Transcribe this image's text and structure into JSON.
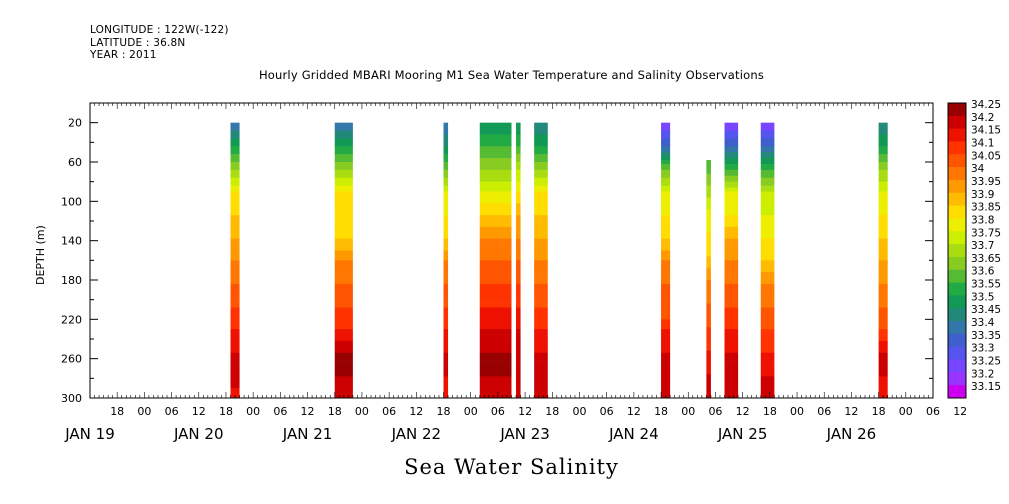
{
  "header": {
    "longitude": "LONGITUDE : 122W(-122)",
    "latitude": "LATITUDE : 36.8N",
    "year": "YEAR : 2011"
  },
  "chart_data": {
    "type": "heatmap",
    "title": "Hourly Gridded MBARI Mooring M1 Sea Water Temperature and Salinity Observations",
    "xlabel": "Sea Water Salinity",
    "ylabel": "DEPTH (m)",
    "x_range_hours": [
      0,
      186
    ],
    "ylim": [
      300,
      0
    ],
    "y_ticks": [
      20,
      60,
      100,
      140,
      180,
      220,
      260,
      300
    ],
    "x_hour_ticks": [
      "18",
      "00",
      "06",
      "12",
      "18",
      "00",
      "06",
      "12",
      "18",
      "00",
      "06",
      "12",
      "18",
      "00",
      "06",
      "12",
      "18",
      "00",
      "06",
      "12",
      "18",
      "00",
      "06",
      "12",
      "18",
      "00",
      "06",
      "12",
      "18",
      "00",
      "06",
      "12"
    ],
    "x_day_labels": [
      "JAN 19",
      "JAN 20",
      "JAN 21",
      "JAN 22",
      "JAN 23",
      "JAN 24",
      "JAN 25",
      "JAN 26"
    ],
    "colorbar": {
      "levels": [
        "33.15",
        "33.2",
        "33.25",
        "33.3",
        "33.35",
        "33.4",
        "33.45",
        "33.5",
        "33.55",
        "33.6",
        "33.65",
        "33.7",
        "33.75",
        "33.8",
        "33.85",
        "33.9",
        "33.95",
        "34",
        "34.05",
        "34.1",
        "34.15",
        "34.2",
        "34.25"
      ],
      "colors": [
        "#cc00ee",
        "#9933ff",
        "#7744ff",
        "#5555ee",
        "#3f5fcc",
        "#3377aa",
        "#22887a",
        "#119955",
        "#22aa44",
        "#55bb33",
        "#88cc22",
        "#aadd11",
        "#ccee00",
        "#eeee00",
        "#ffdd00",
        "#ffbb00",
        "#ff9900",
        "#ff7700",
        "#ff5500",
        "#ff3300",
        "#ee1100",
        "#cc0000",
        "#990000"
      ]
    },
    "segments": [
      {
        "start_h": 31,
        "end_h": 33,
        "top": 20,
        "profile": [
          33.4,
          33.55,
          33.7,
          33.85,
          33.9,
          33.95,
          34.0,
          34.05,
          34.1,
          34.15,
          34.2,
          34.25,
          34.15
        ]
      },
      {
        "start_h": 54,
        "end_h": 58,
        "top": 20,
        "profile": [
          33.4,
          33.55,
          33.7,
          33.85,
          33.85,
          33.9,
          34.0,
          34.05,
          34.1,
          34.15,
          34.25,
          34.25,
          34.2
        ]
      },
      {
        "start_h": 78,
        "end_h": 79,
        "top": 20,
        "profile": [
          33.4,
          33.5,
          33.65,
          33.8,
          33.85,
          33.9,
          34.0,
          34.05,
          34.1,
          34.15,
          34.2,
          34.2,
          34.15
        ]
      },
      {
        "start_h": 86,
        "end_h": 93,
        "top": 20,
        "profile": [
          33.5,
          33.6,
          33.7,
          33.8,
          33.9,
          34.0,
          34.05,
          34.1,
          34.15,
          34.2,
          34.25,
          34.25,
          34.2
        ]
      },
      {
        "start_h": 94,
        "end_h": 95,
        "top": 20,
        "profile": [
          33.5,
          33.6,
          33.75,
          33.85,
          33.95,
          34.0,
          34.05,
          34.1,
          34.15,
          34.2,
          34.2,
          34.2,
          34.2
        ]
      },
      {
        "start_h": 98,
        "end_h": 101,
        "top": 20,
        "profile": [
          33.45,
          33.55,
          33.7,
          33.85,
          33.9,
          33.95,
          34.0,
          34.05,
          34.1,
          34.15,
          34.2,
          34.25,
          34.2
        ]
      },
      {
        "start_h": 126,
        "end_h": 128,
        "top": 20,
        "profile": [
          33.25,
          33.4,
          33.65,
          33.8,
          33.85,
          33.9,
          34.0,
          34.05,
          34.05,
          34.15,
          34.2,
          34.25,
          34.2
        ]
      },
      {
        "start_h": 136,
        "end_h": 137,
        "top": 58,
        "profile": [
          33.6,
          33.7,
          33.8,
          33.85,
          33.9,
          34.0,
          34.05,
          34.1,
          34.15,
          34.2,
          34.2
        ]
      },
      {
        "start_h": 140,
        "end_h": 143,
        "top": 20,
        "profile": [
          33.25,
          33.4,
          33.6,
          33.8,
          33.85,
          33.95,
          34.0,
          34.05,
          34.1,
          34.15,
          34.2,
          34.2,
          34.2
        ]
      },
      {
        "start_h": 148,
        "end_h": 151,
        "top": 20,
        "profile": [
          33.25,
          33.4,
          33.6,
          33.75,
          33.8,
          33.85,
          33.9,
          34.0,
          34.05,
          34.1,
          34.15,
          34.2,
          34.2
        ]
      },
      {
        "start_h": 174,
        "end_h": 176,
        "top": 20,
        "profile": [
          33.45,
          33.55,
          33.7,
          33.8,
          33.85,
          33.9,
          33.95,
          34.0,
          34.05,
          34.1,
          34.2,
          34.2,
          34.15
        ]
      }
    ]
  }
}
